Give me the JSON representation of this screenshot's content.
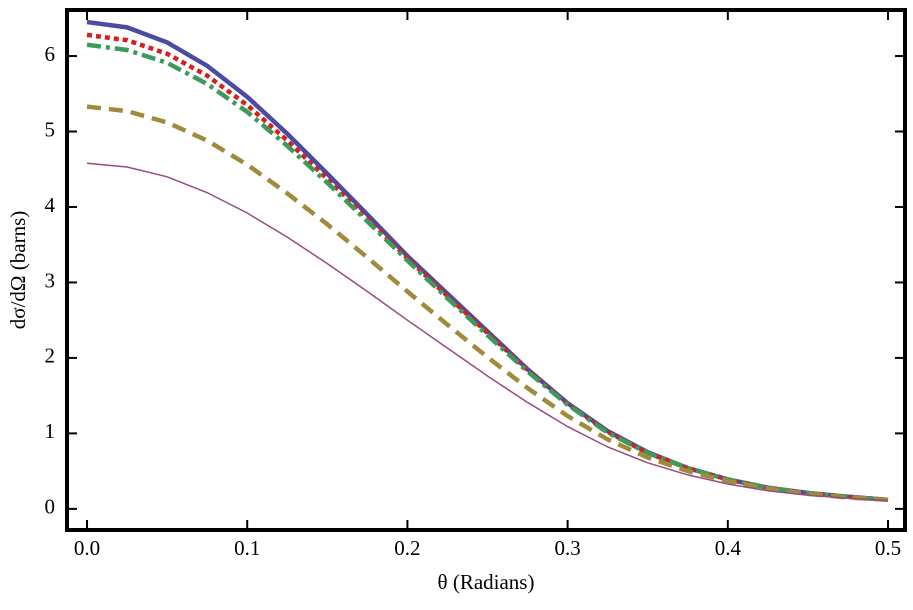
{
  "chart_data": {
    "type": "line",
    "xlabel": "θ (Radians)",
    "ylabel": "dσ/dΩ (barns)",
    "x": [
      0,
      0.025,
      0.05,
      0.075,
      0.1,
      0.125,
      0.15,
      0.175,
      0.2,
      0.225,
      0.25,
      0.275,
      0.3,
      0.325,
      0.35,
      0.375,
      0.4,
      0.425,
      0.45,
      0.475,
      0.5
    ],
    "series": [
      {
        "color": "#4b4ba3",
        "style": "solid",
        "width": 4.5,
        "values": [
          6.45,
          6.38,
          6.18,
          5.87,
          5.46,
          4.97,
          4.44,
          3.9,
          3.35,
          2.85,
          2.35,
          1.85,
          1.4,
          1.03,
          0.75,
          0.54,
          0.39,
          0.28,
          0.21,
          0.16,
          0.12
        ]
      },
      {
        "color": "#d42020",
        "style": "dotted",
        "width": 4.5,
        "values": [
          6.28,
          6.21,
          6.03,
          5.74,
          5.35,
          4.88,
          4.37,
          3.85,
          3.32,
          2.82,
          2.33,
          1.84,
          1.39,
          1.02,
          0.74,
          0.54,
          0.39,
          0.28,
          0.21,
          0.16,
          0.12
        ]
      },
      {
        "color": "#3d9a5a",
        "style": "dashdot",
        "width": 4.5,
        "values": [
          6.15,
          6.08,
          5.91,
          5.63,
          5.26,
          4.81,
          4.32,
          3.81,
          3.29,
          2.79,
          2.3,
          1.82,
          1.38,
          1.01,
          0.74,
          0.54,
          0.39,
          0.28,
          0.21,
          0.16,
          0.12
        ]
      },
      {
        "color": "#a08a3c",
        "style": "dashed",
        "width": 4.5,
        "values": [
          5.33,
          5.27,
          5.12,
          4.88,
          4.56,
          4.18,
          3.77,
          3.33,
          2.88,
          2.44,
          2.01,
          1.6,
          1.23,
          0.92,
          0.68,
          0.5,
          0.37,
          0.27,
          0.2,
          0.15,
          0.12
        ]
      },
      {
        "color": "#9a4a82",
        "style": "solid",
        "width": 1.5,
        "values": [
          4.58,
          4.53,
          4.4,
          4.19,
          3.92,
          3.6,
          3.25,
          2.88,
          2.5,
          2.13,
          1.76,
          1.41,
          1.09,
          0.82,
          0.61,
          0.45,
          0.33,
          0.24,
          0.18,
          0.14,
          0.11
        ]
      }
    ],
    "xlim": [
      -0.0125,
      0.5106
    ],
    "ylim": [
      -0.28,
      6.61
    ],
    "xticks": [
      {
        "value": 0,
        "label": "0.0"
      },
      0.1,
      0.2,
      0.3,
      0.4,
      0.5
    ],
    "yticks": [
      0,
      1,
      2,
      3,
      4,
      5,
      6
    ]
  }
}
